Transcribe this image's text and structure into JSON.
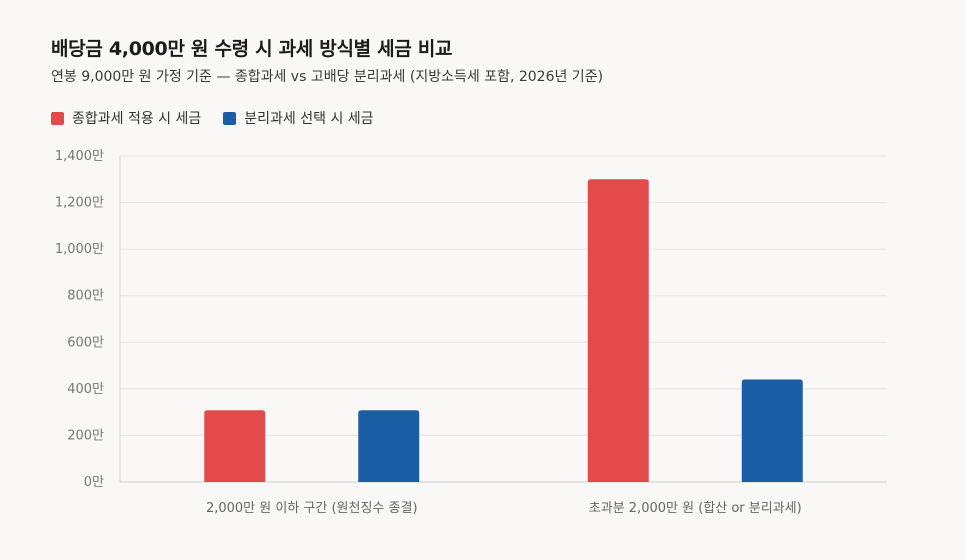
{
  "chart_data": {
    "type": "bar",
    "title": "배당금 4,000만 원 수령 시 과세 방식별 세금 비교",
    "subtitle": "연봉 9,000만 원 가정 기준 — 종합과세 vs 고배당 분리과세 (지방소득세 포함, 2026년 기준)",
    "categories": [
      "2,000만 원 이하 구간 (원천징수 종결)",
      "초과분 2,000만 원 (합산 or 분리과세)"
    ],
    "series": [
      {
        "name": "종합과세 적용 시 세금",
        "color": "#e24b4a",
        "values": [
          308,
          1300
        ]
      },
      {
        "name": "분리과세 선택 시 세금",
        "color": "#1a5ea5",
        "values": [
          308,
          440
        ]
      }
    ],
    "ylim": [
      0,
      1400
    ],
    "yticks": [
      0,
      200,
      400,
      600,
      800,
      1000,
      1200,
      1400
    ],
    "ytick_labels": [
      "0만",
      "200만",
      "400만",
      "600만",
      "800만",
      "1,000만",
      "1,200만",
      "1,400만"
    ],
    "grid": true,
    "legend_position": "top-left"
  }
}
